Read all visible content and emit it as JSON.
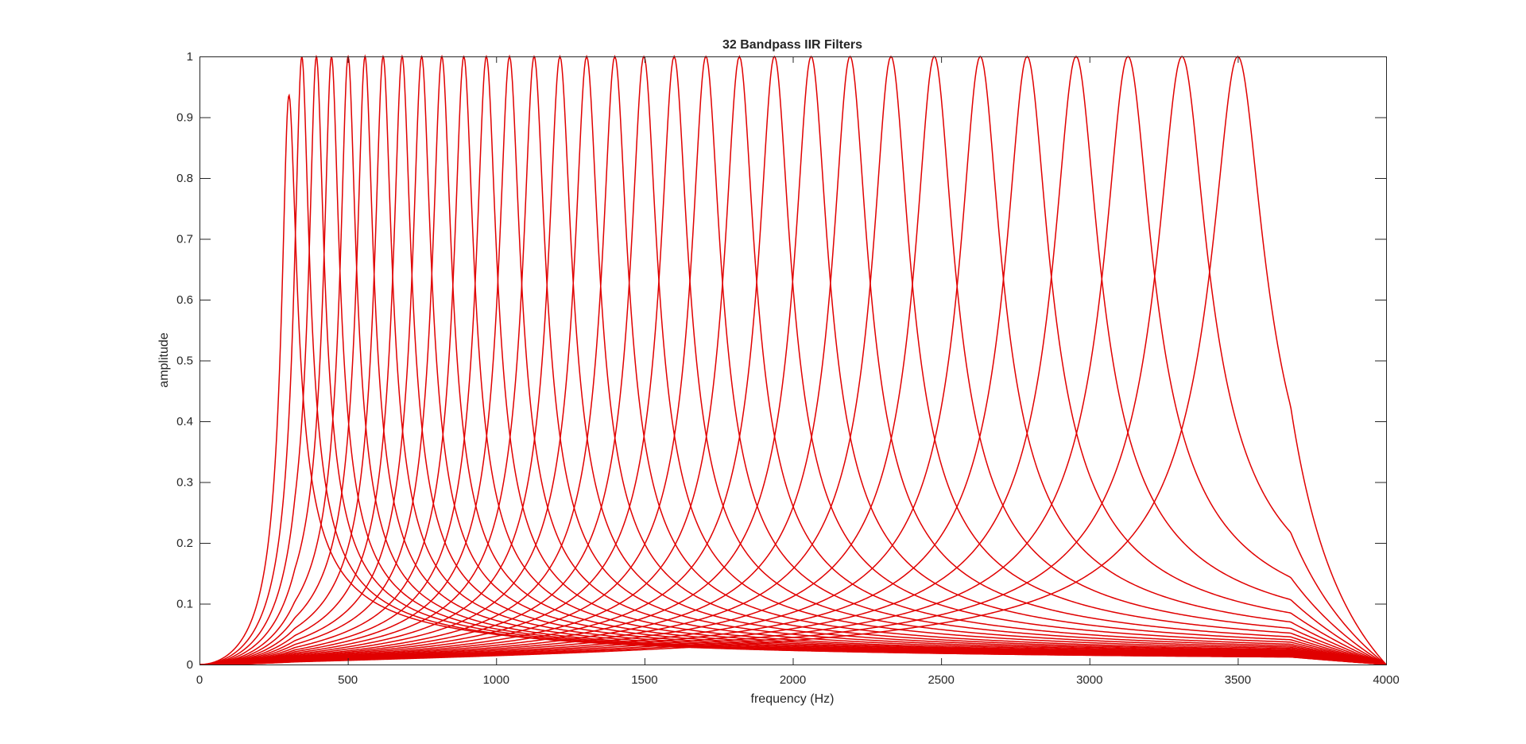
{
  "chart_data": {
    "type": "line",
    "title": "32 Bandpass IIR Filters",
    "xlabel": "frequency (Hz)",
    "ylabel": "amplitude",
    "xlim": [
      0,
      4000
    ],
    "ylim": [
      0,
      1
    ],
    "xticks": [
      0,
      500,
      1000,
      1500,
      2000,
      2500,
      3000,
      3500,
      4000
    ],
    "yticks": [
      0,
      0.1,
      0.2,
      0.3,
      0.4,
      0.5,
      0.6,
      0.7,
      0.8,
      0.9,
      1
    ],
    "grid": false,
    "legend": "none",
    "line_color": "#e00000",
    "series": [
      {
        "center": 300,
        "values": []
      },
      {
        "center": 345,
        "values": []
      },
      {
        "center": 394,
        "values": []
      },
      {
        "center": 445,
        "values": []
      },
      {
        "center": 501,
        "values": []
      },
      {
        "center": 558,
        "values": []
      },
      {
        "center": 619,
        "values": []
      },
      {
        "center": 683,
        "values": []
      },
      {
        "center": 749,
        "values": []
      },
      {
        "center": 817,
        "values": []
      },
      {
        "center": 891,
        "values": []
      },
      {
        "center": 967,
        "values": []
      },
      {
        "center": 1045,
        "values": []
      },
      {
        "center": 1128,
        "values": []
      },
      {
        "center": 1215,
        "values": []
      },
      {
        "center": 1305,
        "values": []
      },
      {
        "center": 1400,
        "values": []
      },
      {
        "center": 1498,
        "values": []
      },
      {
        "center": 1600,
        "values": []
      },
      {
        "center": 1707,
        "values": []
      },
      {
        "center": 1820,
        "values": []
      },
      {
        "center": 1938,
        "values": []
      },
      {
        "center": 2062,
        "values": []
      },
      {
        "center": 2193,
        "values": []
      },
      {
        "center": 2331,
        "values": []
      },
      {
        "center": 2477,
        "values": []
      },
      {
        "center": 2632,
        "values": []
      },
      {
        "center": 2790,
        "values": []
      },
      {
        "center": 2955,
        "values": []
      },
      {
        "center": 3130,
        "values": []
      },
      {
        "center": 3312,
        "values": []
      },
      {
        "center": 3500,
        "values": []
      }
    ],
    "bandwidth_hz": [
      45,
      45,
      46,
      47,
      48,
      50,
      52,
      54,
      56,
      58,
      60,
      62,
      65,
      68,
      71,
      74,
      77,
      81,
      85,
      89,
      93,
      98,
      103,
      108,
      114,
      120,
      126,
      133,
      140,
      147,
      155,
      163
    ]
  }
}
